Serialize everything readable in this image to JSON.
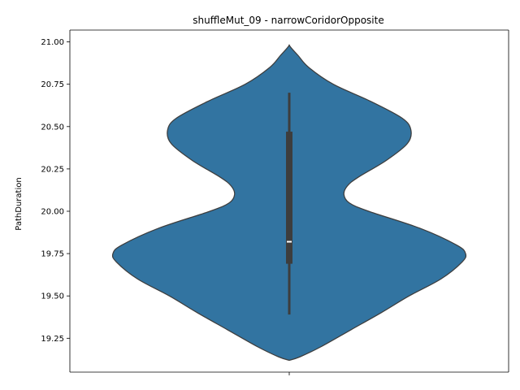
{
  "chart_data": {
    "type": "violin",
    "title": "shuffleMut_09 - narrowCoridorOpposite",
    "xlabel": "",
    "ylabel": "PathDuration",
    "ylim": [
      19.05,
      21.07
    ],
    "yticks": [
      19.25,
      19.5,
      19.75,
      20.0,
      20.25,
      20.5,
      20.75,
      21.0
    ],
    "ytick_labels": [
      "19.25",
      "19.50",
      "19.75",
      "20.00",
      "20.25",
      "20.50",
      "20.75",
      "21.00"
    ],
    "categories": [
      ""
    ],
    "grid": false,
    "violin": {
      "color": "#3274a1",
      "edge_color": "#3d3d3d",
      "y_min": 19.12,
      "y_max": 20.98,
      "density_profile": [
        [
          19.12,
          0.0
        ],
        [
          19.14,
          0.06
        ],
        [
          19.2,
          0.18
        ],
        [
          19.3,
          0.35
        ],
        [
          19.4,
          0.52
        ],
        [
          19.5,
          0.68
        ],
        [
          19.6,
          0.86
        ],
        [
          19.7,
          0.98
        ],
        [
          19.75,
          1.0
        ],
        [
          19.8,
          0.95
        ],
        [
          19.9,
          0.74
        ],
        [
          20.0,
          0.45
        ],
        [
          20.05,
          0.34
        ],
        [
          20.1,
          0.31
        ],
        [
          20.15,
          0.33
        ],
        [
          20.2,
          0.39
        ],
        [
          20.3,
          0.55
        ],
        [
          20.4,
          0.67
        ],
        [
          20.48,
          0.69
        ],
        [
          20.55,
          0.64
        ],
        [
          20.65,
          0.46
        ],
        [
          20.75,
          0.25
        ],
        [
          20.85,
          0.11
        ],
        [
          20.92,
          0.05
        ],
        [
          20.96,
          0.015
        ],
        [
          20.98,
          0.0
        ]
      ],
      "whisker_low": 19.39,
      "whisker_high": 20.7,
      "q1": 19.69,
      "q3": 20.47,
      "median": 19.82
    }
  }
}
